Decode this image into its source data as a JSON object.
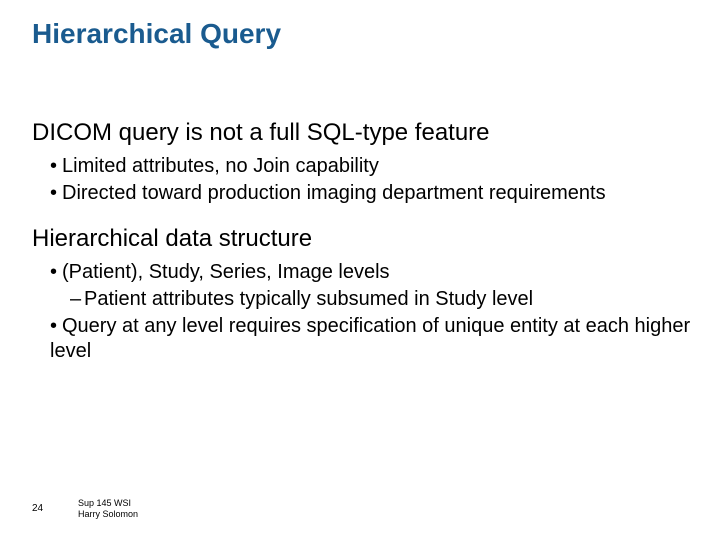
{
  "colors": {
    "title": "#1a5b8f",
    "body": "#000000",
    "background": "#ffffff"
  },
  "fonts": {
    "title_size_pt": 28,
    "heading_size_pt": 24,
    "bullet_size_pt": 20,
    "footer_size_pt": 10,
    "footer_small_pt": 9,
    "family": "Arial"
  },
  "title": "Hierarchical Query",
  "section1": {
    "heading": "DICOM query is not a full SQL-type feature",
    "bullets": [
      "Limited attributes, no Join capability",
      "Directed toward production imaging department requirements"
    ]
  },
  "section2": {
    "heading": "Hierarchical data structure",
    "bullets": [
      "(Patient), Study, Series, Image levels"
    ],
    "subbullets": [
      "Patient attributes typically subsumed in Study level"
    ],
    "bullets2": [
      "Query at any level requires specification of unique entity at each higher level"
    ]
  },
  "footer": {
    "page_number": "24",
    "line1": "Sup 145 WSI",
    "line2": "Harry Solomon"
  }
}
